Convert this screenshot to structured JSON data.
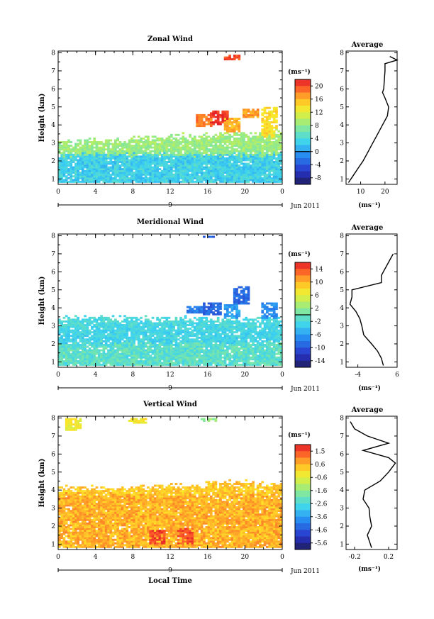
{
  "common": {
    "height_label": "Height (km)",
    "height_ticks": [
      "1",
      "2",
      "3",
      "4",
      "5",
      "6",
      "7",
      "8"
    ],
    "time_ticks": [
      "0",
      "4",
      "8",
      "12",
      "16",
      "20",
      "0"
    ],
    "date_day": "9",
    "date_month": "Jun 2011",
    "unit_label": "(ms⁻¹)",
    "average_title": "Average",
    "local_time_label": "Local Time"
  },
  "chart_data": [
    {
      "type": "heatmap",
      "title": "Zonal Wind",
      "x_range_hours": [
        0,
        24
      ],
      "y_range_km": [
        0.7,
        8.1
      ],
      "colorbar": {
        "ticks": [
          "20",
          "16",
          "12",
          "8",
          "4",
          "0",
          "-4",
          "-8"
        ],
        "range": [
          -10,
          22
        ],
        "contour_at": 0
      },
      "field": {
        "lower": {
          "top_km": 2.3,
          "value": 3
        },
        "middle": {
          "top_km_start": 3.0,
          "top_km_end": 3.6,
          "value": 8
        },
        "upper_patches": [
          {
            "t": 15.5,
            "h0": 3.9,
            "h1": 4.6,
            "value": 18
          },
          {
            "t": 17.2,
            "h0": 4.0,
            "h1": 4.7,
            "value": 21
          },
          {
            "t": 18.5,
            "h0": 3.6,
            "h1": 4.4,
            "value": 16
          },
          {
            "t": 20.5,
            "h0": 4.4,
            "h1": 4.8,
            "value": 17
          },
          {
            "t": 22.5,
            "h0": 3.3,
            "h1": 4.9,
            "value": 14
          },
          {
            "t": 18.5,
            "h0": 7.5,
            "h1": 7.85,
            "value": 20
          }
        ]
      },
      "average": {
        "x_ticks": [
          "10",
          "20"
        ],
        "x_range": [
          4,
          25
        ],
        "profile_h": [
          0.8,
          1.2,
          1.6,
          2.0,
          2.5,
          3.0,
          3.5,
          4.0,
          4.5,
          5.0,
          5.5,
          5.8,
          6.0,
          7.0,
          7.4,
          7.6,
          7.8
        ],
        "profile_v": [
          5,
          7,
          9,
          11,
          13,
          15,
          17,
          19,
          21,
          21.5,
          20,
          19,
          19.5,
          20,
          20,
          25,
          22
        ]
      }
    },
    {
      "type": "heatmap",
      "title": "Meridional Wind",
      "x_range_hours": [
        0,
        24
      ],
      "y_range_km": [
        0.7,
        8.1
      ],
      "colorbar": {
        "ticks": [
          "14",
          "10",
          "6",
          "2",
          "-2",
          "-6",
          "-10",
          "-14"
        ],
        "range": [
          -16,
          16
        ],
        "contour_at": 0
      },
      "field": {
        "lower": {
          "top_km": 2.0,
          "value": -1
        },
        "middle": {
          "top_km_start": 3.4,
          "top_km_end": 3.3,
          "value": -3
        },
        "upper_patches": [
          {
            "t": 14.5,
            "h0": 3.7,
            "h1": 4.1,
            "value": -8
          },
          {
            "t": 16.3,
            "h0": 3.6,
            "h1": 4.3,
            "value": -9
          },
          {
            "t": 18.5,
            "h0": 3.4,
            "h1": 4.2,
            "value": -6
          },
          {
            "t": 19.5,
            "h0": 4.2,
            "h1": 5.1,
            "value": -9
          },
          {
            "t": 22.5,
            "h0": 3.4,
            "h1": 4.3,
            "value": -7
          },
          {
            "t": 16.0,
            "h0": 7.8,
            "h1": 7.95,
            "value": -10
          }
        ]
      },
      "average": {
        "x_ticks": [
          "-4",
          "6"
        ],
        "x_range": [
          -7,
          6
        ],
        "profile_h": [
          0.8,
          1.2,
          1.6,
          2.0,
          2.5,
          3.0,
          3.4,
          3.8,
          4.2,
          4.6,
          5.0,
          5.4,
          5.8,
          6.8,
          7.0
        ],
        "profile_v": [
          2.5,
          2.0,
          1.0,
          -0.5,
          -2.5,
          -3.0,
          -3.5,
          -4.5,
          -6.0,
          -5.5,
          -5.5,
          2.0,
          2.0,
          4.5,
          5.0
        ]
      }
    },
    {
      "type": "heatmap",
      "title": "Vertical Wind",
      "x_range_hours": [
        0,
        24
      ],
      "y_range_km": [
        0.7,
        8.1
      ],
      "colorbar": {
        "ticks": [
          "1.5",
          "0.6",
          "-0.6",
          "-1.6",
          "-2.6",
          "-3.6",
          "-4.6",
          "-5.6"
        ],
        "range": [
          -6,
          2
        ],
        "contour_at": null
      },
      "field": {
        "lower": {
          "top_km": 3.7,
          "value": 0.5
        },
        "middle": {
          "top_km_start": 4.0,
          "top_km_end": 4.4,
          "value": 0.2
        },
        "upper_patches": [
          {
            "t": 1.5,
            "h0": 7.2,
            "h1": 7.9,
            "value": -0.3
          },
          {
            "t": 8.3,
            "h0": 7.6,
            "h1": 7.9,
            "value": -0.2
          },
          {
            "t": 16.0,
            "h0": 7.7,
            "h1": 7.9,
            "value": -1.5
          },
          {
            "t": 10.5,
            "h0": 1.0,
            "h1": 1.8,
            "value": 1.6
          },
          {
            "t": 13.5,
            "h0": 1.0,
            "h1": 1.9,
            "value": 1.5
          }
        ]
      },
      "average": {
        "x_ticks": [
          "-0.2",
          "0.2"
        ],
        "x_range": [
          -0.3,
          0.3
        ],
        "profile_h": [
          0.8,
          1.5,
          2.0,
          2.5,
          3.0,
          3.5,
          4.0,
          4.5,
          5.0,
          5.5,
          5.8,
          6.2,
          6.6,
          7.0,
          7.4,
          7.8
        ],
        "profile_v": [
          0.0,
          -0.05,
          0.0,
          -0.02,
          -0.03,
          -0.1,
          -0.08,
          0.1,
          0.2,
          0.28,
          0.2,
          -0.1,
          0.2,
          -0.05,
          -0.2,
          -0.25
        ]
      }
    }
  ]
}
